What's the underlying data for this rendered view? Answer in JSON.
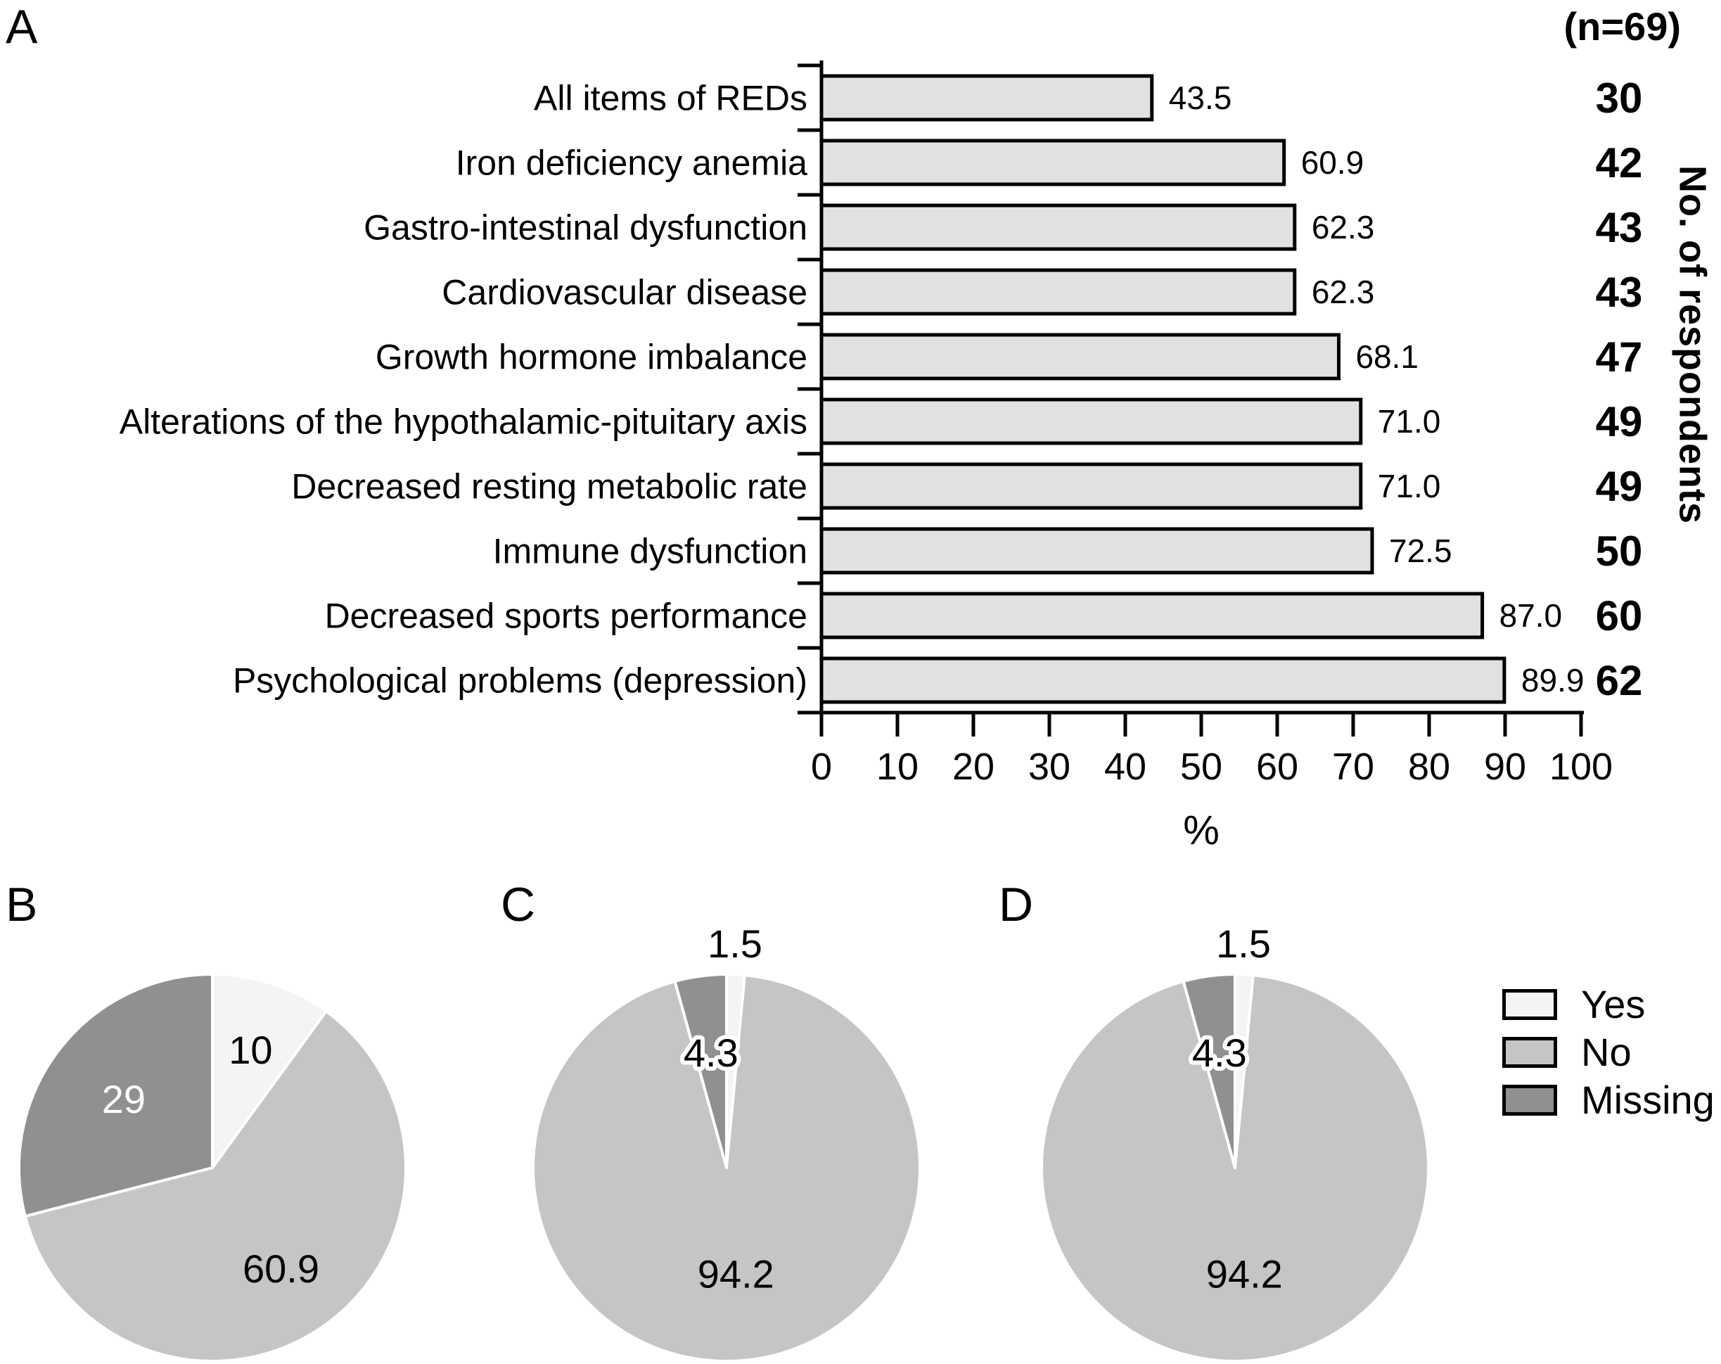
{
  "panels": {
    "a": "A",
    "b": "B",
    "c": "C",
    "d": "D"
  },
  "colors": {
    "bar_fill": "#e1e1e1",
    "axis_stroke": "#000000",
    "pie_separator": "#ffffff"
  },
  "legend": {
    "position": "right",
    "items": [
      {
        "label": "Yes",
        "color": "#f4f4f4"
      },
      {
        "label": "No",
        "color": "#c5c5c5"
      },
      {
        "label": "Missing",
        "color": "#909090"
      }
    ]
  },
  "chart_data": [
    {
      "type": "bar",
      "panel": "A",
      "orientation": "horizontal",
      "n_label": "(n=69)",
      "right_axis_label": "No. of respondents",
      "xlabel": "%",
      "xlim": [
        0,
        100
      ],
      "xticks": [
        0,
        10,
        20,
        30,
        40,
        50,
        60,
        70,
        80,
        90,
        100
      ],
      "grid": false,
      "categories": [
        "All items of REDs",
        "Iron deficiency anemia",
        "Gastro-intestinal dysfunction",
        "Cardiovascular disease",
        "Growth hormone imbalance",
        "Alterations of the hypothalamic-pituitary axis",
        "Decreased resting metabolic rate",
        "Immune dysfunction",
        "Decreased sports performance",
        "Psychological problems (depression)"
      ],
      "values": [
        43.5,
        60.9,
        62.3,
        62.3,
        68.1,
        71.0,
        71.0,
        72.5,
        87.0,
        89.9
      ],
      "value_labels": [
        "43.5",
        "60.9",
        "62.3",
        "62.3",
        "68.1",
        "71.0",
        "71.0",
        "72.5",
        "87.0",
        "89.9"
      ],
      "respondents": [
        30,
        42,
        43,
        43,
        47,
        49,
        49,
        50,
        60,
        62
      ]
    },
    {
      "type": "pie",
      "panel": "B",
      "labels": [
        "Yes",
        "No",
        "Missing"
      ],
      "values": [
        10,
        60.9,
        29
      ],
      "value_labels": [
        "10",
        "60.9",
        "29"
      ]
    },
    {
      "type": "pie",
      "panel": "C",
      "labels": [
        "Yes",
        "No",
        "Missing"
      ],
      "values": [
        1.5,
        94.2,
        4.3
      ],
      "value_labels": [
        "1.5",
        "94.2",
        "4.3"
      ]
    },
    {
      "type": "pie",
      "panel": "D",
      "labels": [
        "Yes",
        "No",
        "Missing"
      ],
      "values": [
        1.5,
        94.2,
        4.3
      ],
      "value_labels": [
        "1.5",
        "94.2",
        "4.3"
      ]
    }
  ]
}
